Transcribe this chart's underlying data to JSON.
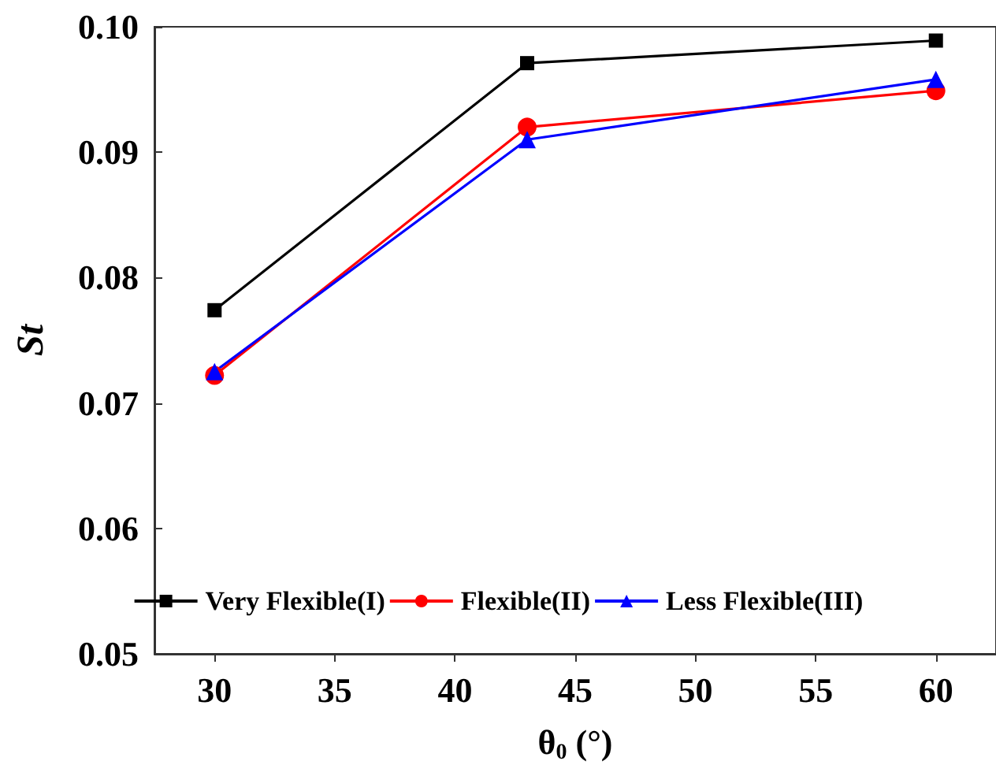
{
  "chart_data": {
    "type": "line",
    "xlabel": "θ$_{0}$ (°)",
    "ylabel": "St",
    "x": [
      30,
      43,
      60
    ],
    "series": [
      {
        "name": "Very Flexible(I)",
        "color": "#000000",
        "marker": "square",
        "values": [
          0.0774,
          0.0971,
          0.0989
        ]
      },
      {
        "name": "Flexible(II)",
        "color": "#ff0000",
        "marker": "circle",
        "values": [
          0.0722,
          0.092,
          0.0949
        ]
      },
      {
        "name": "Less Flexible(III)",
        "color": "#0000ff",
        "marker": "triangle",
        "values": [
          0.0725,
          0.091,
          0.0958
        ]
      }
    ],
    "xlim": [
      27.5,
      62.5
    ],
    "xticks": [
      30,
      35,
      40,
      45,
      50,
      55,
      60
    ],
    "ylim": [
      0.05,
      0.1
    ],
    "yticks": [
      0.05,
      0.06,
      0.07,
      0.08,
      0.09,
      {
        "value": 0.1,
        "label": "0.10"
      }
    ],
    "grid": false,
    "legend": "bottom",
    "line_style": "solid"
  }
}
